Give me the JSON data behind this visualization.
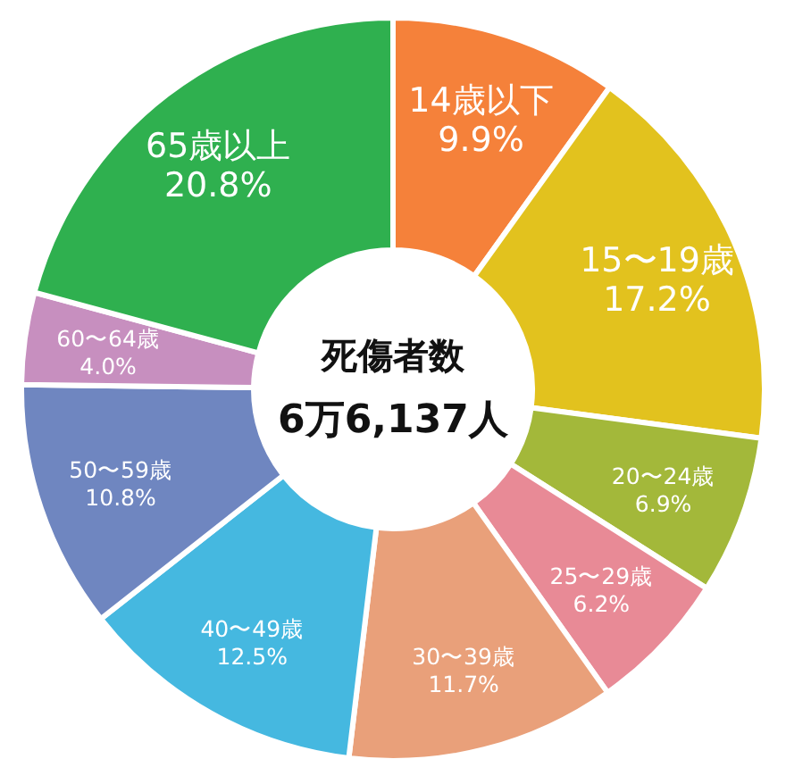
{
  "chart_data": {
    "type": "donut",
    "title": "死傷者数",
    "subtitle": "6万6,137人",
    "categories": [
      "14歳以下",
      "15〜19歳",
      "20〜24歳",
      "25〜29歳",
      "30〜39歳",
      "40〜49歳",
      "50〜59歳",
      "60〜64歳",
      "65歳以上"
    ],
    "values": [
      9.9,
      17.2,
      6.9,
      6.2,
      11.7,
      12.5,
      10.8,
      4.0,
      20.8
    ],
    "colors": [
      "#f5813a",
      "#e2c21e",
      "#a3b83a",
      "#e88a96",
      "#e9a07a",
      "#45b8e0",
      "#6f86c0",
      "#c78fbf",
      "#2fb04f"
    ],
    "value_labels": [
      "9.9%",
      "17.2%",
      "6.9%",
      "6.2%",
      "11.7%",
      "12.5%",
      "10.8%",
      "4.0%",
      "20.8%"
    ],
    "legend": false
  }
}
